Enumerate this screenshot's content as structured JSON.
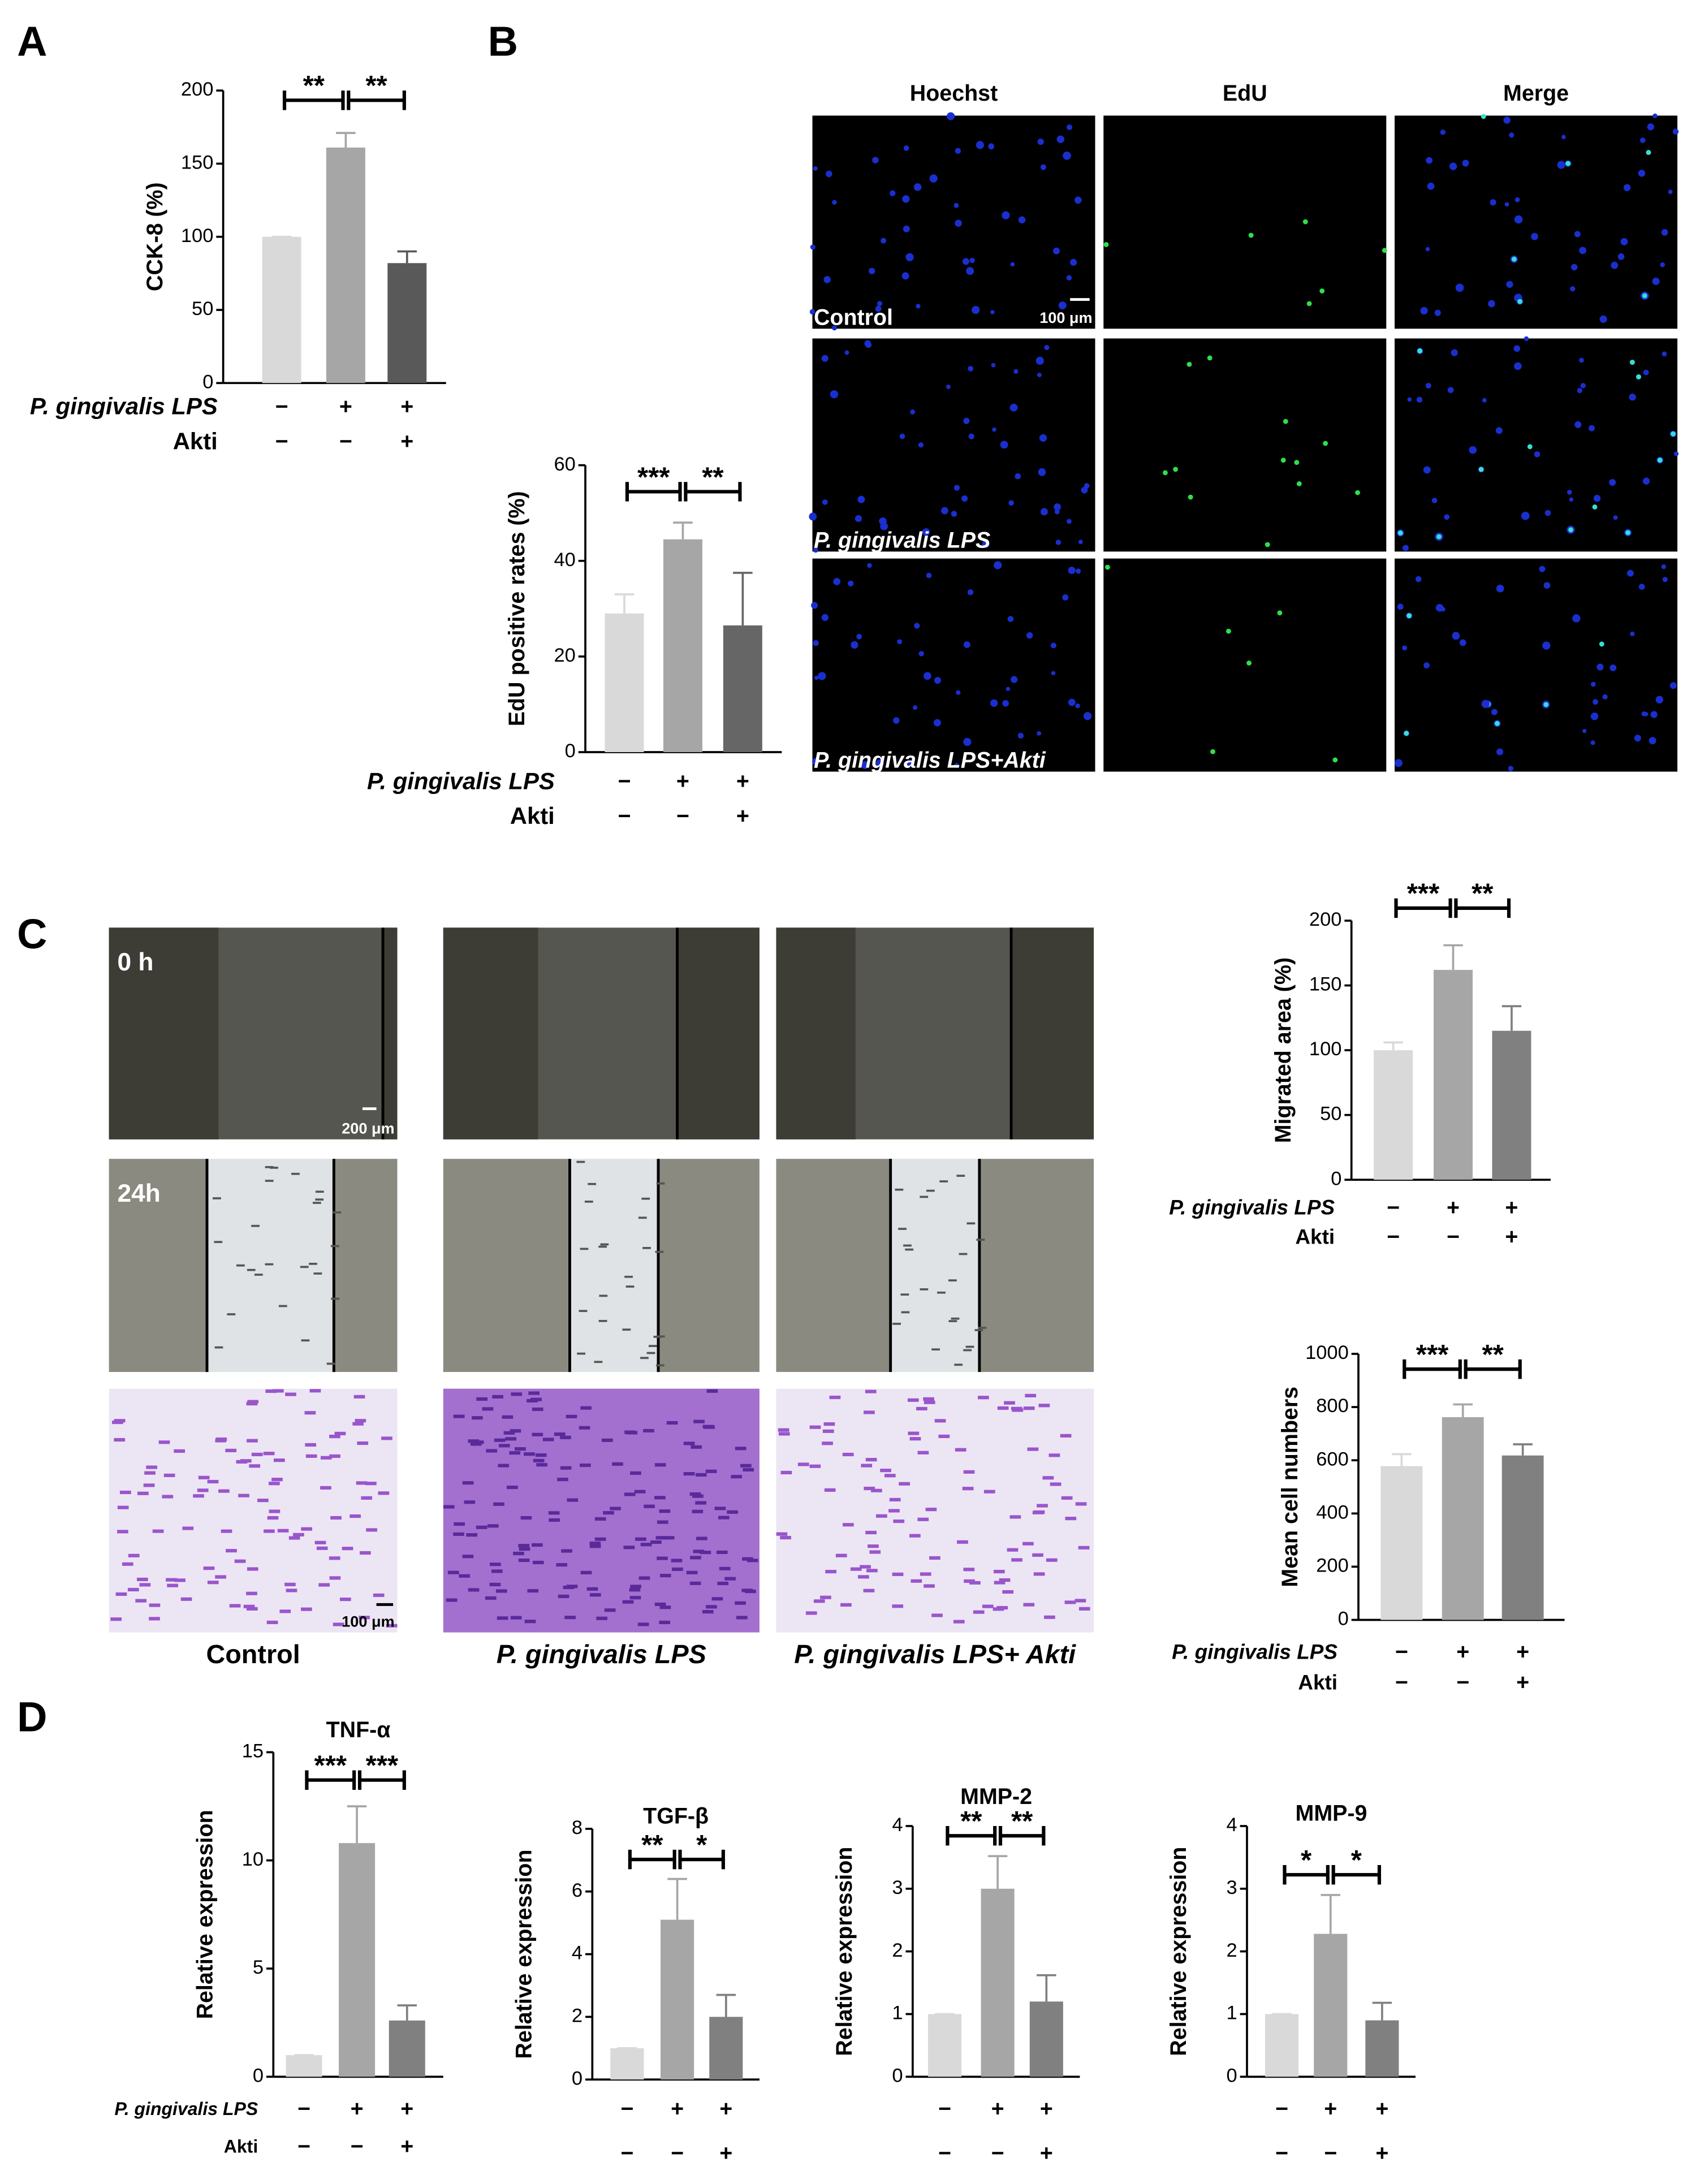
{
  "chart_data": [
    {
      "type": "bar",
      "ylabel": "CCK-8 (%)",
      "values": [
        100,
        161,
        82
      ],
      "errors": [
        0,
        10,
        8
      ],
      "colors": [
        "#d9d9d9",
        "#a6a6a6",
        "#595959"
      ],
      "ylim": [
        0,
        200
      ],
      "yticks": [
        0,
        50,
        100,
        150,
        200
      ],
      "conditions": [
        {
          "name": "P. gingivalis LPS",
          "values": [
            "−",
            "+",
            "+"
          ]
        },
        {
          "name": "Akti",
          "values": [
            "−",
            "−",
            "+"
          ]
        }
      ],
      "significance": [
        {
          "text": "**",
          "from": 0,
          "to": 1
        },
        {
          "text": "**",
          "from": 1,
          "to": 2
        }
      ]
    },
    {
      "type": "bar",
      "ylabel": "EdU positive rates (%)",
      "values": [
        29,
        44.5,
        26.5
      ],
      "errors": [
        4,
        3.5,
        11
      ],
      "colors": [
        "#d9d9d9",
        "#a6a6a6",
        "#666666"
      ],
      "ylim": [
        0,
        60
      ],
      "yticks": [
        0,
        20,
        40,
        60
      ],
      "conditions": [
        {
          "name": "P. gingivalis LPS",
          "values": [
            "−",
            "+",
            "+"
          ]
        },
        {
          "name": "Akti",
          "values": [
            "−",
            "−",
            "+"
          ]
        }
      ],
      "significance": [
        {
          "text": "***",
          "from": 0,
          "to": 1
        },
        {
          "text": "**",
          "from": 1,
          "to": 2
        }
      ]
    },
    {
      "type": "bar",
      "ylabel": "Migrated area (%)",
      "values": [
        100,
        162,
        115
      ],
      "errors": [
        6,
        19,
        19
      ],
      "colors": [
        "#d9d9d9",
        "#a6a6a6",
        "#808080"
      ],
      "ylim": [
        0,
        200
      ],
      "yticks": [
        0,
        50,
        100,
        150,
        200
      ],
      "conditions": [
        {
          "name": "P. gingivalis LPS",
          "values": [
            "−",
            "+",
            "+"
          ]
        },
        {
          "name": "Akti",
          "values": [
            "−",
            "−",
            "+"
          ]
        }
      ],
      "significance": [
        {
          "text": "***",
          "from": 0,
          "to": 1
        },
        {
          "text": "**",
          "from": 1,
          "to": 2
        }
      ]
    },
    {
      "type": "bar",
      "ylabel": "Mean cell numbers",
      "values": [
        578,
        762,
        618
      ],
      "errors": [
        45,
        48,
        42
      ],
      "colors": [
        "#d9d9d9",
        "#a6a6a6",
        "#808080"
      ],
      "ylim": [
        0,
        1000
      ],
      "yticks": [
        0,
        200,
        400,
        600,
        800,
        1000
      ],
      "conditions": [
        {
          "name": "P. gingivalis LPS",
          "values": [
            "−",
            "+",
            "+"
          ]
        },
        {
          "name": "Akti",
          "values": [
            "−",
            "−",
            "+"
          ]
        }
      ],
      "significance": [
        {
          "text": "***",
          "from": 0,
          "to": 1
        },
        {
          "text": "**",
          "from": 1,
          "to": 2
        }
      ]
    },
    {
      "type": "bar",
      "title": "TNF-α",
      "ylabel": "Relative expression",
      "values": [
        1,
        10.8,
        2.6
      ],
      "errors": [
        0,
        1.7,
        0.7
      ],
      "colors": [
        "#d9d9d9",
        "#a6a6a6",
        "#808080"
      ],
      "ylim": [
        0,
        15
      ],
      "yticks": [
        0,
        5,
        10,
        15
      ],
      "conditions": [
        {
          "name": "P. gingivalis LPS",
          "values": [
            "−",
            "+",
            "+"
          ]
        },
        {
          "name": "Akti",
          "values": [
            "−",
            "−",
            "+"
          ]
        }
      ],
      "significance": [
        {
          "text": "***",
          "from": 0,
          "to": 1
        },
        {
          "text": "***",
          "from": 1,
          "to": 2
        }
      ]
    },
    {
      "type": "bar",
      "title": "TGF-β",
      "ylabel": "Relative expression",
      "values": [
        1,
        5.1,
        2.0
      ],
      "errors": [
        0,
        1.3,
        0.7
      ],
      "colors": [
        "#d9d9d9",
        "#a6a6a6",
        "#808080"
      ],
      "ylim": [
        0,
        8
      ],
      "yticks": [
        0,
        2,
        4,
        6,
        8
      ],
      "conditions": [
        {
          "values": [
            "−",
            "+",
            "+"
          ]
        },
        {
          "values": [
            "−",
            "−",
            "+"
          ]
        }
      ],
      "significance": [
        {
          "text": "**",
          "from": 0,
          "to": 1
        },
        {
          "text": "*",
          "from": 1,
          "to": 2
        }
      ]
    },
    {
      "type": "bar",
      "title": "MMP-2",
      "ylabel": "Relative expression",
      "values": [
        1,
        3.0,
        1.2
      ],
      "errors": [
        0,
        0.52,
        0.42
      ],
      "colors": [
        "#d9d9d9",
        "#a6a6a6",
        "#808080"
      ],
      "ylim": [
        0,
        4
      ],
      "yticks": [
        0,
        1,
        2,
        3,
        4
      ],
      "conditions": [
        {
          "values": [
            "−",
            "+",
            "+"
          ]
        },
        {
          "values": [
            "−",
            "−",
            "+"
          ]
        }
      ],
      "significance": [
        {
          "text": "**",
          "from": 0,
          "to": 1
        },
        {
          "text": "**",
          "from": 1,
          "to": 2
        }
      ]
    },
    {
      "type": "bar",
      "title": "MMP-9",
      "ylabel": "Relative expression",
      "values": [
        1,
        2.28,
        0.9
      ],
      "errors": [
        0,
        0.62,
        0.28
      ],
      "colors": [
        "#d9d9d9",
        "#a6a6a6",
        "#808080"
      ],
      "ylim": [
        0,
        4
      ],
      "yticks": [
        0,
        1,
        2,
        3,
        4
      ],
      "conditions": [
        {
          "values": [
            "−",
            "+",
            "+"
          ]
        },
        {
          "values": [
            "−",
            "−",
            "+"
          ]
        }
      ],
      "significance": [
        {
          "text": "*",
          "from": 0,
          "to": 1
        },
        {
          "text": "*",
          "from": 1,
          "to": 2
        }
      ]
    }
  ],
  "figure": {
    "panels": [
      "A",
      "B",
      "C",
      "D"
    ],
    "edu_columns": [
      "Hoechst",
      "EdU",
      "Merge"
    ],
    "edu_rows": [
      "Control",
      "P. gingivalis LPS",
      "P. gingivalis LPS+Akti"
    ],
    "edu_scale": "100 μm",
    "wound_times": [
      "0 h",
      "24h"
    ],
    "wound_scale": "200 μm",
    "transwell_scale": "100 μm",
    "groups": [
      "Control",
      "P. gingivalis LPS",
      "P. gingivalis LPS+ Akti"
    ]
  }
}
